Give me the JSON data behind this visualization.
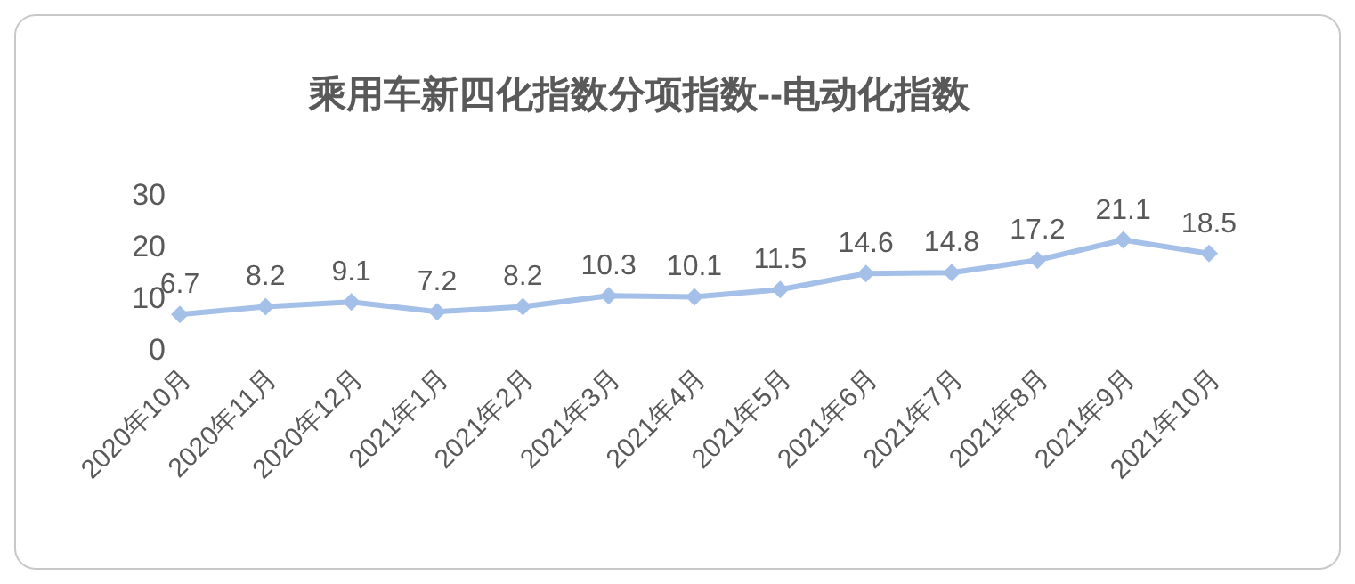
{
  "chart_data": {
    "type": "line",
    "title": "乘用车新四化指数分项指数--电动化指数",
    "categories": [
      "2020年10月",
      "2020年11月",
      "2020年12月",
      "2021年1月",
      "2021年2月",
      "2021年3月",
      "2021年4月",
      "2021年5月",
      "2021年6月",
      "2021年7月",
      "2021年8月",
      "2021年9月",
      "2021年10月"
    ],
    "series": [
      {
        "color": "#a4c0e8",
        "values": [
          6.7,
          8.2,
          9.1,
          7.2,
          8.2,
          10.3,
          10.1,
          11.5,
          14.6,
          14.8,
          17.2,
          21.1,
          18.5
        ]
      }
    ],
    "ylim": [
      0,
      30
    ],
    "yticks": [
      0,
      10,
      20,
      30
    ],
    "grid": false,
    "legend": false,
    "marker": "diamond",
    "line_style": "solid",
    "data_labels": true
  }
}
